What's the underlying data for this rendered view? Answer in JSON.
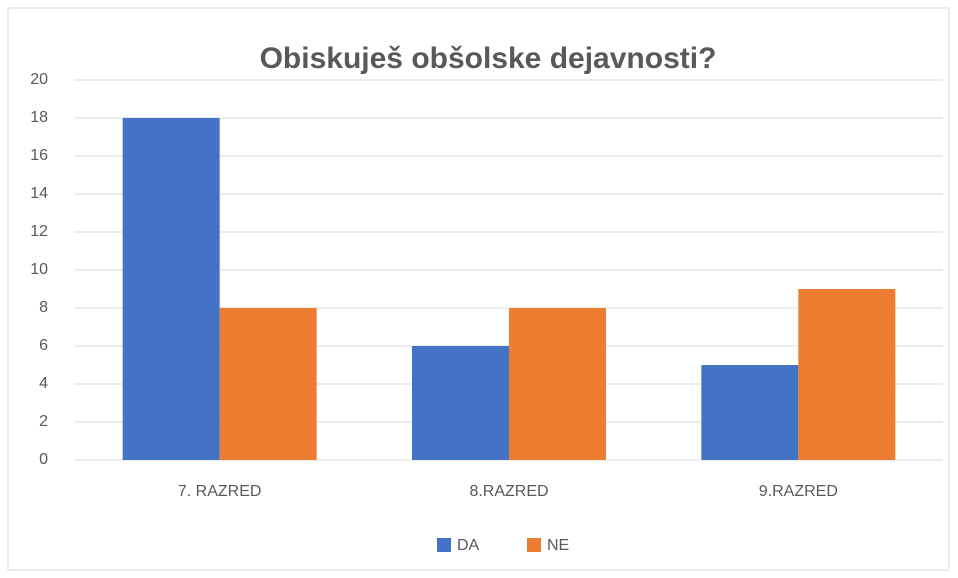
{
  "chart_data": {
    "type": "bar",
    "title": "Obiskuješ obšolske dejavnosti?",
    "categories": [
      "7. RAZRED",
      "8.RAZRED",
      "9.RAZRED"
    ],
    "series": [
      {
        "name": "DA",
        "color": "#4472c4",
        "values": [
          18,
          6,
          5
        ]
      },
      {
        "name": "NE",
        "color": "#ed7d31",
        "values": [
          8,
          8,
          9
        ]
      }
    ],
    "ylim": [
      0,
      20
    ],
    "yticks": [
      0,
      2,
      4,
      6,
      8,
      10,
      12,
      14,
      16,
      18,
      20
    ],
    "grid": true,
    "legend": "bottom"
  }
}
